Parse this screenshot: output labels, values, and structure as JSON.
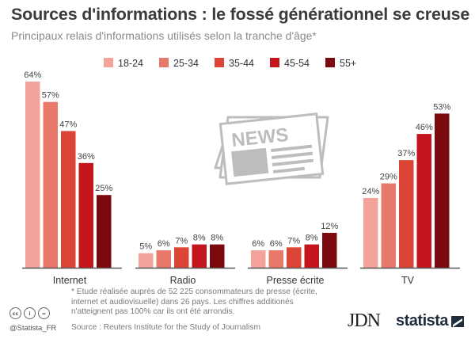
{
  "header": {
    "title": "Sources d'informations : le fossé générationnel se creuse",
    "subtitle": "Principaux relais d'informations utilisés selon la tranche d'âge*"
  },
  "footer": {
    "footnote": "* Etude réalisée auprès de 52 225 consommateurs de presse (écrite, internet et audiovisuelle) dans 26 pays. Les chiffres additionés n'atteignent pas 100% car ils ont été arrondis.",
    "source": "Source : Reuters Institute for the Study of Journalism",
    "handle": "@Statista_FR",
    "brand_jdn": "JDN",
    "brand_statista": "statista"
  },
  "icons": [
    "cc-icon",
    "by-icon",
    "equals-icon",
    "newspaper-icon",
    "statista-logo-icon"
  ],
  "colors": {
    "axis": "#555555",
    "label": "#444444",
    "newspaper": "#bdbdbd"
  },
  "chart_data": {
    "type": "bar",
    "categories": [
      "Internet",
      "Radio",
      "Presse écrite",
      "TV"
    ],
    "series": [
      {
        "name": "18-24",
        "color": "#f4a39a",
        "values": [
          64,
          5,
          6,
          24
        ]
      },
      {
        "name": "25-34",
        "color": "#e8786a",
        "values": [
          57,
          6,
          6,
          29
        ]
      },
      {
        "name": "35-44",
        "color": "#dc4435",
        "values": [
          47,
          7,
          7,
          37
        ]
      },
      {
        "name": "45-54",
        "color": "#c4141c",
        "values": [
          36,
          8,
          8,
          46
        ]
      },
      {
        "name": "55+",
        "color": "#7a0a0e",
        "values": [
          25,
          8,
          12,
          53
        ]
      }
    ],
    "value_suffix": "%",
    "ylim": [
      0,
      64
    ],
    "grid": false,
    "legend": "top"
  }
}
